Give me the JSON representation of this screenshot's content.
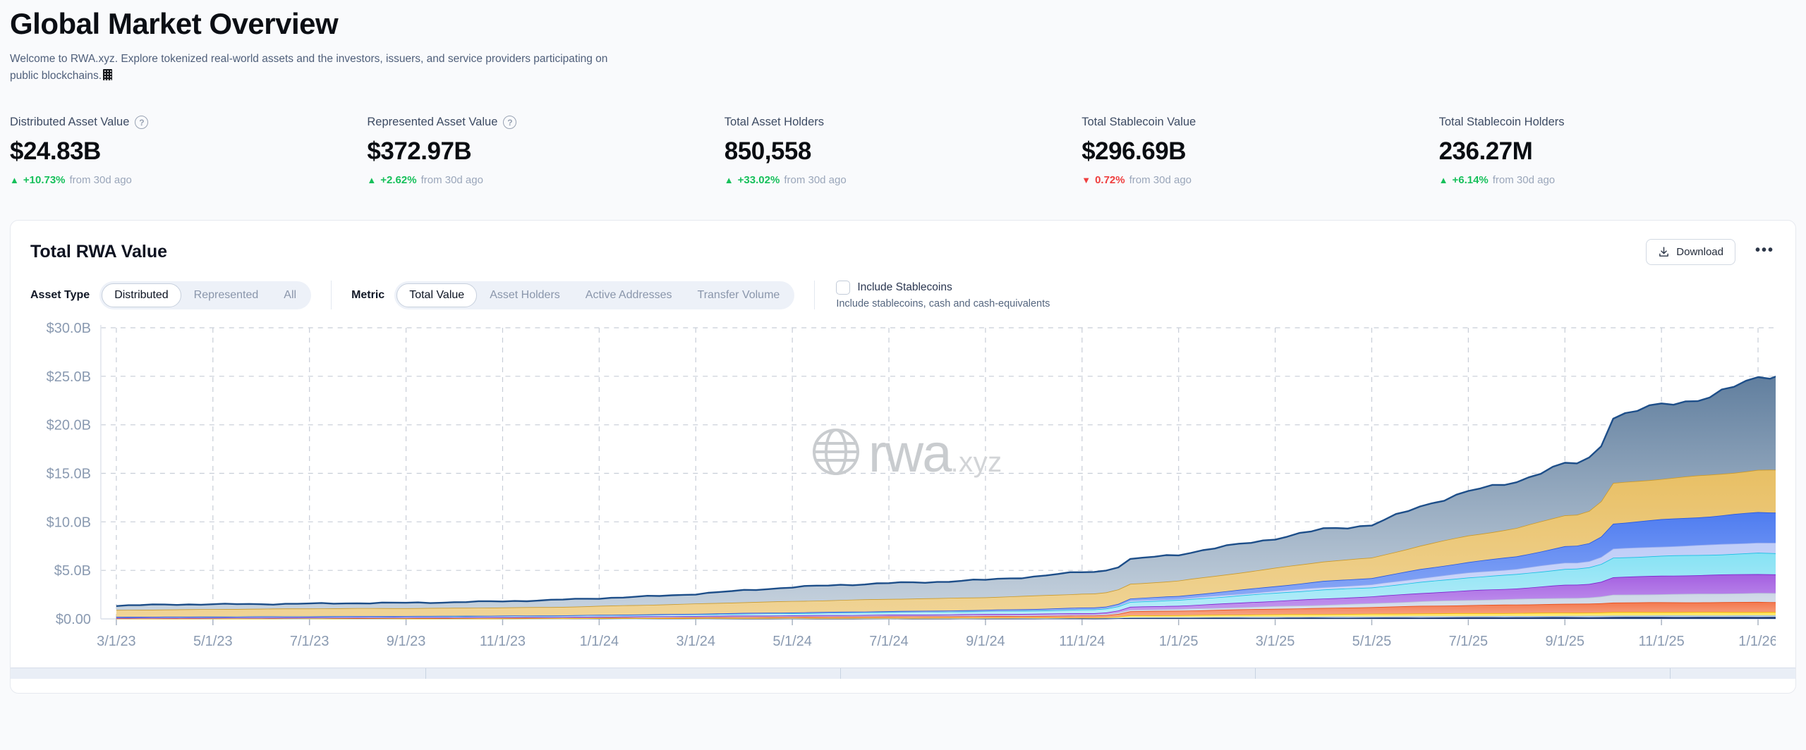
{
  "page": {
    "title": "Global Market Overview",
    "subtitle_line1": "Welcome to RWA.xyz. Explore tokenized real-world assets and the investors, issuers, and service providers participating on",
    "subtitle_line2": "public blockchains."
  },
  "stats": [
    {
      "label": "Distributed Asset Value",
      "has_help": true,
      "value": "$24.83B",
      "delta_arrow": "▲",
      "delta": "+10.73%",
      "delta_dir": "up",
      "delta_suffix": "from 30d ago"
    },
    {
      "label": "Represented Asset Value",
      "has_help": true,
      "value": "$372.97B",
      "delta_arrow": "▲",
      "delta": "+2.62%",
      "delta_dir": "up",
      "delta_suffix": "from 30d ago"
    },
    {
      "label": "Total Asset Holders",
      "has_help": false,
      "value": "850,558",
      "delta_arrow": "▲",
      "delta": "+33.02%",
      "delta_dir": "up",
      "delta_suffix": "from 30d ago"
    },
    {
      "label": "Total Stablecoin Value",
      "has_help": false,
      "value": "$296.69B",
      "delta_arrow": "▼",
      "delta": "0.72%",
      "delta_dir": "down",
      "delta_suffix": "from 30d ago"
    },
    {
      "label": "Total Stablecoin Holders",
      "has_help": false,
      "value": "236.27M",
      "delta_arrow": "▲",
      "delta": "+6.14%",
      "delta_dir": "up",
      "delta_suffix": "from 30d ago"
    }
  ],
  "chart_card": {
    "title": "Total RWA Value",
    "download_label": "Download",
    "more_menu": "•••",
    "asset_type": {
      "label": "Asset Type",
      "options": [
        "Distributed",
        "Represented",
        "All"
      ],
      "selected": "Distributed"
    },
    "metric": {
      "label": "Metric",
      "options": [
        "Total Value",
        "Asset Holders",
        "Active Addresses",
        "Transfer Volume"
      ],
      "selected": "Total Value"
    },
    "stablecoins_checkbox": {
      "label": "Include Stablecoins",
      "description": "Include stablecoins, cash and cash-equivalents",
      "checked": false
    },
    "watermark": {
      "word": "rwa",
      "tld": ".xyz"
    }
  },
  "chart_data": {
    "type": "area",
    "stacked": true,
    "title": "Total RWA Value (stacked by asset class, unlabeled in UI)",
    "grid": "dashed",
    "legend": "none",
    "ylim": [
      0,
      30
    ],
    "y_tick_labels": [
      "$30.0B",
      "$25.0B",
      "$20.0B",
      "$15.0B",
      "$10.0B",
      "$5.0B",
      "$0.00"
    ],
    "x_tick_labels": [
      "3/1/23",
      "5/1/23",
      "7/1/23",
      "9/1/23",
      "11/1/23",
      "1/1/24",
      "3/1/24",
      "5/1/24",
      "7/1/24",
      "9/1/24",
      "11/1/24",
      "1/1/25",
      "3/1/25",
      "5/1/25",
      "7/1/25",
      "9/1/25",
      "11/1/25",
      "1/1/26"
    ],
    "x_months": [
      "2023-03",
      "2023-04",
      "2023-05",
      "2023-06",
      "2023-07",
      "2023-08",
      "2023-09",
      "2023-10",
      "2023-11",
      "2023-12",
      "2024-01",
      "2024-02",
      "2024-03",
      "2024-04",
      "2024-05",
      "2024-06",
      "2024-07",
      "2024-08",
      "2024-09",
      "2024-10",
      "2024-11",
      "2024-12",
      "2025-01",
      "2025-02",
      "2025-03",
      "2025-04",
      "2025-05",
      "2025-06",
      "2025-07",
      "2025-08",
      "2025-09",
      "2025-10",
      "2025-11",
      "2025-12",
      "2026-01",
      "2026-02"
    ],
    "unit": "USD billions",
    "series": [
      {
        "name": "navy-band",
        "stroke": "#15265b",
        "fill": [
          "#22407c",
          "#22407c"
        ],
        "values": [
          0.01,
          0.01,
          0.01,
          0.01,
          0.01,
          0.01,
          0.01,
          0.01,
          0.01,
          0.01,
          0.02,
          0.02,
          0.02,
          0.02,
          0.02,
          0.03,
          0.03,
          0.03,
          0.03,
          0.03,
          0.04,
          0.08,
          0.09,
          0.1,
          0.11,
          0.12,
          0.13,
          0.14,
          0.15,
          0.16,
          0.17,
          0.19,
          0.2,
          0.2,
          0.2,
          0.2
        ]
      },
      {
        "name": "sky-band",
        "stroke": "#8fb8e4",
        "fill": [
          "#bdd7f0",
          "#d6e6f7"
        ],
        "values": [
          0.01,
          0.01,
          0.01,
          0.01,
          0.01,
          0.01,
          0.01,
          0.01,
          0.02,
          0.02,
          0.02,
          0.02,
          0.02,
          0.03,
          0.03,
          0.03,
          0.03,
          0.03,
          0.04,
          0.04,
          0.04,
          0.08,
          0.08,
          0.09,
          0.1,
          0.1,
          0.11,
          0.12,
          0.13,
          0.13,
          0.14,
          0.15,
          0.15,
          0.15,
          0.15,
          0.15
        ]
      },
      {
        "name": "yellow-band",
        "stroke": "#efb902",
        "fill": [
          "#ffe24d",
          "#fff0a0"
        ],
        "values": [
          0.01,
          0.01,
          0.01,
          0.01,
          0.02,
          0.02,
          0.02,
          0.02,
          0.02,
          0.02,
          0.03,
          0.03,
          0.03,
          0.04,
          0.04,
          0.04,
          0.05,
          0.05,
          0.05,
          0.06,
          0.06,
          0.2,
          0.21,
          0.23,
          0.25,
          0.26,
          0.28,
          0.3,
          0.31,
          0.32,
          0.33,
          0.35,
          0.35,
          0.35,
          0.36,
          0.35
        ]
      },
      {
        "name": "orange-band",
        "stroke": "#e84e1b",
        "fill": [
          "#f3764b",
          "#f8b092"
        ],
        "values": [
          0.04,
          0.04,
          0.05,
          0.05,
          0.05,
          0.06,
          0.06,
          0.06,
          0.07,
          0.07,
          0.08,
          0.09,
          0.1,
          0.11,
          0.12,
          0.13,
          0.14,
          0.15,
          0.16,
          0.17,
          0.19,
          0.42,
          0.45,
          0.52,
          0.58,
          0.64,
          0.7,
          0.78,
          0.82,
          0.86,
          0.9,
          1.0,
          1.01,
          1.02,
          1.04,
          1.0
        ]
      },
      {
        "name": "silver-band",
        "stroke": "#b7c3d8",
        "fill": [
          "#cdd7e6",
          "#dde4ee"
        ],
        "values": [
          0.02,
          0.02,
          0.02,
          0.02,
          0.02,
          0.03,
          0.03,
          0.03,
          0.03,
          0.03,
          0.04,
          0.04,
          0.05,
          0.05,
          0.06,
          0.06,
          0.07,
          0.07,
          0.08,
          0.08,
          0.09,
          0.16,
          0.18,
          0.22,
          0.27,
          0.32,
          0.38,
          0.46,
          0.52,
          0.58,
          0.62,
          0.8,
          0.84,
          0.87,
          0.9,
          0.9
        ]
      },
      {
        "name": "purple-band",
        "stroke": "#7e22ce",
        "fill": [
          "#a45fe0",
          "#c9a4f2"
        ],
        "values": [
          0.02,
          0.02,
          0.02,
          0.03,
          0.03,
          0.03,
          0.03,
          0.04,
          0.04,
          0.04,
          0.05,
          0.06,
          0.07,
          0.08,
          0.09,
          0.1,
          0.11,
          0.12,
          0.13,
          0.14,
          0.16,
          0.3,
          0.35,
          0.44,
          0.54,
          0.64,
          0.7,
          0.85,
          1.0,
          1.1,
          1.35,
          1.8,
          1.88,
          1.93,
          1.98,
          1.95
        ]
      },
      {
        "name": "cyan-band",
        "stroke": "#17bfe4",
        "fill": [
          "#86e2f4",
          "#bdeef9"
        ],
        "values": [
          0.09,
          0.1,
          0.1,
          0.11,
          0.11,
          0.12,
          0.12,
          0.13,
          0.13,
          0.14,
          0.15,
          0.17,
          0.19,
          0.21,
          0.23,
          0.25,
          0.27,
          0.28,
          0.3,
          0.33,
          0.38,
          0.52,
          0.58,
          0.7,
          0.82,
          0.94,
          0.95,
          1.15,
          1.35,
          1.45,
          1.62,
          2.0,
          2.06,
          2.1,
          2.18,
          2.15
        ]
      },
      {
        "name": "periwinkle-band",
        "stroke": "#96abef",
        "fill": [
          "#bfcdf8",
          "#d4ddfa"
        ],
        "values": [
          0,
          0,
          0,
          0,
          0,
          0,
          0,
          0,
          0,
          0,
          0.01,
          0.02,
          0.02,
          0.03,
          0.03,
          0.04,
          0.04,
          0.05,
          0.05,
          0.06,
          0.07,
          0.12,
          0.14,
          0.18,
          0.22,
          0.27,
          0.3,
          0.4,
          0.48,
          0.55,
          0.66,
          0.95,
          0.99,
          1.02,
          1.06,
          1.05
        ]
      },
      {
        "name": "blue-band",
        "stroke": "#2557e0",
        "fill": [
          "#4e7cf0",
          "#96b2f7"
        ],
        "values": [
          0,
          0,
          0,
          0,
          0,
          0,
          0,
          0,
          0,
          0,
          0.01,
          0.01,
          0.02,
          0.03,
          0.04,
          0.05,
          0.06,
          0.07,
          0.08,
          0.1,
          0.12,
          0.22,
          0.28,
          0.38,
          0.48,
          0.6,
          0.65,
          0.9,
          1.1,
          1.3,
          1.7,
          2.6,
          2.75,
          2.9,
          3.1,
          3.2
        ]
      },
      {
        "name": "gold-band",
        "stroke": "#c9992b",
        "fill": [
          "#e8bf64",
          "#f0d496"
        ],
        "values": [
          0.72,
          0.76,
          0.78,
          0.8,
          0.82,
          0.82,
          0.83,
          0.84,
          0.86,
          0.88,
          0.92,
          0.98,
          1.05,
          1.12,
          1.18,
          1.22,
          1.25,
          1.27,
          1.3,
          1.38,
          1.45,
          1.52,
          1.58,
          1.72,
          1.86,
          2.02,
          2.1,
          2.45,
          2.75,
          2.9,
          3.2,
          4.1,
          4.2,
          4.3,
          4.42,
          4.35
        ]
      },
      {
        "name": "slate-band",
        "stroke": "#1d4e89",
        "fill": [
          "#5f7d9d",
          "#c6d2de"
        ],
        "values": [
          0.42,
          0.46,
          0.48,
          0.5,
          0.52,
          0.53,
          0.55,
          0.58,
          0.63,
          0.68,
          0.78,
          0.9,
          1.05,
          1.22,
          1.38,
          1.52,
          1.63,
          1.7,
          1.8,
          2.0,
          2.28,
          2.48,
          2.62,
          2.85,
          3.1,
          3.42,
          3.4,
          4.0,
          4.5,
          4.8,
          5.2,
          6.8,
          7.8,
          8.2,
          9.55,
          9.95
        ]
      }
    ]
  }
}
